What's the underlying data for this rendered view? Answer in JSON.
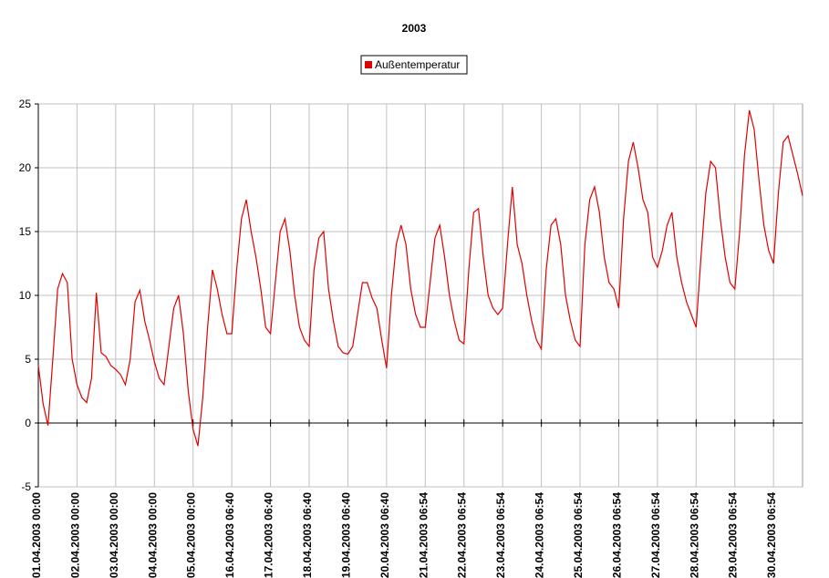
{
  "chart_data": {
    "type": "line",
    "title": "2003",
    "legend": "top",
    "grid": true,
    "categories": [
      "01.04.2003 00:00",
      null,
      null,
      null,
      null,
      null,
      null,
      null,
      "02.04.2003 00:00",
      null,
      null,
      null,
      null,
      null,
      null,
      null,
      "03.04.2003 00:00",
      null,
      null,
      null,
      null,
      null,
      null,
      null,
      "04.04.2003 00:00",
      null,
      null,
      null,
      null,
      null,
      null,
      null,
      "05.04.2003 00:00",
      null,
      null,
      null,
      null,
      null,
      null,
      null,
      "16.04.2003 06:40",
      null,
      null,
      null,
      null,
      null,
      null,
      null,
      "17.04.2003 06:40",
      null,
      null,
      null,
      null,
      null,
      null,
      null,
      "18.04.2003 06:40",
      null,
      null,
      null,
      null,
      null,
      null,
      null,
      "19.04.2003 06:40",
      null,
      null,
      null,
      null,
      null,
      null,
      null,
      "20.04.2003 06:40",
      null,
      null,
      null,
      null,
      null,
      null,
      null,
      "21.04.2003 06:54",
      null,
      null,
      null,
      null,
      null,
      null,
      null,
      "22.04.2003 06:54",
      null,
      null,
      null,
      null,
      null,
      null,
      null,
      "23.04.2003 06:54",
      null,
      null,
      null,
      null,
      null,
      null,
      null,
      "24.04.2003 06:54",
      null,
      null,
      null,
      null,
      null,
      null,
      null,
      "25.04.2003 06:54",
      null,
      null,
      null,
      null,
      null,
      null,
      null,
      "26.04.2003 06:54",
      null,
      null,
      null,
      null,
      null,
      null,
      null,
      "27.04.2003 06:54",
      null,
      null,
      null,
      null,
      null,
      null,
      null,
      "28.04.2003 06:54",
      null,
      null,
      null,
      null,
      null,
      null,
      null,
      "29.04.2003 06:54",
      null,
      null,
      null,
      null,
      null,
      null,
      null,
      "30.04.2003 06:54",
      null,
      null,
      null,
      null,
      null,
      null
    ],
    "series": [
      {
        "name": "Außentemperatur",
        "color": "#e00000",
        "values": [
          4.5,
          1.5,
          -0.2,
          5,
          10.5,
          11.7,
          11,
          5,
          3,
          2,
          1.6,
          3.5,
          10.2,
          5.5,
          5.2,
          4.5,
          4.2,
          3.8,
          3,
          5,
          9.5,
          10.4,
          8,
          6.5,
          4.8,
          3.5,
          3,
          6,
          9,
          10,
          7,
          2.5,
          -0.5,
          -1.8,
          2,
          7.5,
          12,
          10.5,
          8.5,
          7,
          7,
          12,
          16,
          17.5,
          15,
          13,
          10.5,
          7.5,
          7,
          11,
          15,
          16,
          13.5,
          10,
          7.5,
          6.5,
          6,
          12,
          14.5,
          15,
          10.5,
          8,
          6,
          5.5,
          5.4,
          6,
          8.5,
          11,
          11,
          9.8,
          9,
          6.5,
          4.3,
          10,
          14,
          15.5,
          14,
          10.5,
          8.5,
          7.5,
          7.5,
          11,
          14.5,
          15.5,
          13,
          10,
          8,
          6.5,
          6.2,
          12,
          16.5,
          16.8,
          13,
          10,
          9,
          8.5,
          9,
          14,
          18.5,
          14,
          12.5,
          10,
          8,
          6.5,
          5.8,
          12,
          15.5,
          16,
          14,
          10,
          8,
          6.5,
          6,
          14,
          17.5,
          18.5,
          16.5,
          13,
          11,
          10.5,
          9,
          16,
          20.5,
          22,
          20,
          17.5,
          16.5,
          13,
          12.2,
          13.5,
          15.5,
          16.5,
          13,
          11,
          9.5,
          8.5,
          7.5,
          13,
          18,
          20.5,
          20,
          16,
          13,
          11,
          10.5,
          15,
          21,
          24.5,
          23,
          19,
          15.5,
          13.5,
          12.5,
          18,
          22,
          22.5,
          21,
          19.5,
          17.8
        ]
      }
    ],
    "ylim": [
      -5,
      25
    ],
    "yticks": [
      -5,
      0,
      5,
      10,
      15,
      20,
      25
    ]
  }
}
